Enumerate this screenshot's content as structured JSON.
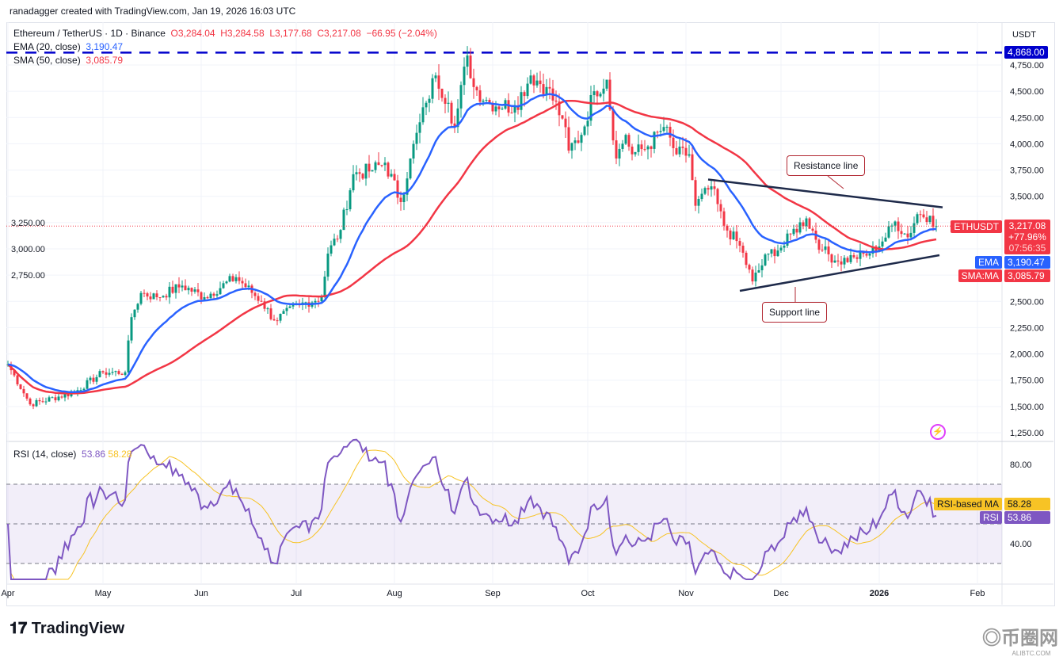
{
  "credit": "ranadagger created with TradingView.com, Jan 19, 2026 16:03 UTC",
  "symbol_line": "Ethereum / TetherUS · 1D · Binance",
  "ohlc": {
    "o": "O3,284.04",
    "h": "H3,284.58",
    "l": "L3,177.68",
    "c": "C3,217.08",
    "chg": "−66.95 (−2.04%)"
  },
  "ema_label": "EMA (20, close)",
  "ema_value": "3,190.47",
  "sma_label": "SMA (50, close)",
  "sma_value": "3,085.79",
  "rsi_label": "RSI (14, close)",
  "rsi_value": "53.86",
  "rsi_ma_value": "58.28",
  "currency": "USDT",
  "price_tags": {
    "symbol": "ETHUSDT",
    "price": "3,217.08",
    "pct": "+77.96%",
    "countdown": "07:56:35",
    "ema": "EMA",
    "ema_val": "3,190.47",
    "sma": "SMA:MA",
    "sma_val": "3,085.79",
    "level": "4,868.00",
    "rsi_ma": "RSI-based MA",
    "rsi_ma_val": "58.28",
    "rsi": "RSI",
    "rsi_val": "53.86"
  },
  "annotations": {
    "resistance": "Resistance line",
    "support": "Support line"
  },
  "brand": "TradingView",
  "watermark": {
    "name": "币圈网",
    "site": "ALIBTC.COM"
  },
  "colors": {
    "up": "#089981",
    "down": "#f23645",
    "ema": "#2962ff",
    "sma": "#f23645",
    "rsi": "#7e57c2",
    "rsi_ma": "#f7c325",
    "level": "#0000cc",
    "trend": "#1e2a4a"
  },
  "chart_data": {
    "type": "candlestick",
    "title": "Ethereum / TetherUS · 1D · Binance",
    "x_unit": "days since Apr 1 2025",
    "ylim": [
      1150,
      4950
    ],
    "y_ticks": [
      1250,
      1500,
      1750,
      2000,
      2250,
      2500,
      2750,
      3000,
      3250,
      3500,
      3750,
      4000,
      4250,
      4500,
      4750
    ],
    "y_tick_labels": [
      "1,250.00",
      "1,500.00",
      "1,750.00",
      "2,000.00",
      "2,250.00",
      "2,500.00",
      "2,750.00",
      "3,000.00",
      "3,250.00",
      "3,500.00",
      "3,750.00",
      "4,000.00",
      "4,250.00",
      "4,500.00",
      "4,750.00"
    ],
    "x_ticks": [
      {
        "day": 0,
        "label": "Apr"
      },
      {
        "day": 30,
        "label": "May"
      },
      {
        "day": 61,
        "label": "Jun"
      },
      {
        "day": 91,
        "label": "Jul"
      },
      {
        "day": 122,
        "label": "Aug"
      },
      {
        "day": 153,
        "label": "Sep"
      },
      {
        "day": 183,
        "label": "Oct"
      },
      {
        "day": 214,
        "label": "Nov"
      },
      {
        "day": 244,
        "label": "Dec"
      },
      {
        "day": 275,
        "label": "2026"
      },
      {
        "day": 306,
        "label": "Feb"
      }
    ],
    "close_keypoints": [
      [
        0,
        1900
      ],
      [
        7,
        1520
      ],
      [
        21,
        1635
      ],
      [
        30,
        1825
      ],
      [
        37,
        1825
      ],
      [
        39,
        2350
      ],
      [
        42,
        2580
      ],
      [
        47,
        2540
      ],
      [
        55,
        2650
      ],
      [
        62,
        2540
      ],
      [
        72,
        2730
      ],
      [
        80,
        2500
      ],
      [
        84,
        2320
      ],
      [
        92,
        2465
      ],
      [
        99,
        2540
      ],
      [
        101,
        2955
      ],
      [
        105,
        3180
      ],
      [
        109,
        3710
      ],
      [
        115,
        3750
      ],
      [
        119,
        3820
      ],
      [
        124,
        3445
      ],
      [
        127,
        3860
      ],
      [
        132,
        4390
      ],
      [
        135,
        4650
      ],
      [
        139,
        4390
      ],
      [
        141,
        4160
      ],
      [
        145,
        4840
      ],
      [
        147,
        4540
      ],
      [
        152,
        4390
      ],
      [
        160,
        4350
      ],
      [
        165,
        4650
      ],
      [
        170,
        4540
      ],
      [
        175,
        4240
      ],
      [
        177,
        3935
      ],
      [
        181,
        4085
      ],
      [
        185,
        4500
      ],
      [
        189,
        4610
      ],
      [
        192,
        3860
      ],
      [
        195,
        4085
      ],
      [
        197,
        3900
      ],
      [
        202,
        3975
      ],
      [
        207,
        4160
      ],
      [
        211,
        3900
      ],
      [
        215,
        3900
      ],
      [
        217,
        3410
      ],
      [
        222,
        3595
      ],
      [
        226,
        3220
      ],
      [
        231,
        3030
      ],
      [
        235,
        2690
      ],
      [
        240,
        2955
      ],
      [
        245,
        3030
      ],
      [
        247,
        3140
      ],
      [
        252,
        3290
      ],
      [
        257,
        2990
      ],
      [
        262,
        2880
      ],
      [
        267,
        2920
      ],
      [
        272,
        2955
      ],
      [
        276,
        3070
      ],
      [
        280,
        3260
      ],
      [
        284,
        3110
      ],
      [
        287,
        3330
      ],
      [
        291,
        3315
      ],
      [
        293,
        3217.08
      ]
    ],
    "horizontal_level": 4868,
    "trendlines": {
      "resistance": [
        [
          221,
          3660
        ],
        [
          295,
          3395
        ]
      ],
      "support": [
        [
          231,
          2600
        ],
        [
          294,
          2940
        ]
      ]
    },
    "indicators": {
      "ema_period": 20,
      "sma_period": 50,
      "rsi_period": 14,
      "rsi_ma_period": 14
    },
    "rsi_ylim": [
      22,
      95
    ],
    "rsi_ticks": [
      {
        "v": 80,
        "label": "80.00"
      },
      {
        "v": 40,
        "label": "40.00"
      }
    ],
    "rsi_bands": [
      70,
      50,
      30
    ]
  }
}
